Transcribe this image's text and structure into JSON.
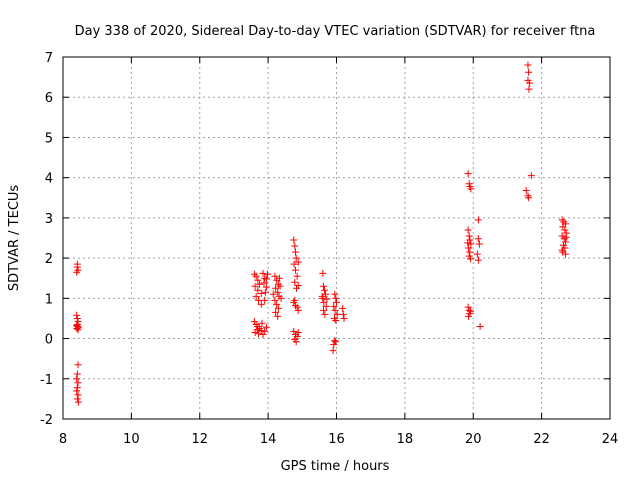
{
  "chart_data": {
    "type": "scatter",
    "title": "Day 338 of 2020, Sidereal Day-to-day VTEC variation (SDTVAR) for receiver ftna",
    "xlabel": "GPS time / hours",
    "ylabel": "SDTVAR / TECUs",
    "xlim": [
      8,
      24
    ],
    "ylim": [
      -2,
      7
    ],
    "xticks": [
      8,
      10,
      12,
      14,
      16,
      18,
      20,
      22,
      24
    ],
    "yticks": [
      -2,
      -1,
      0,
      1,
      2,
      3,
      4,
      5,
      6,
      7
    ],
    "grid": true,
    "marker": "+",
    "color": "#ff0000",
    "series": [
      {
        "name": "SDTVAR",
        "points": [
          [
            8.42,
            1.85
          ],
          [
            8.42,
            1.78
          ],
          [
            8.44,
            1.7
          ],
          [
            8.4,
            1.65
          ],
          [
            8.4,
            0.58
          ],
          [
            8.42,
            0.5
          ],
          [
            8.44,
            0.42
          ],
          [
            8.4,
            0.32
          ],
          [
            8.43,
            0.3
          ],
          [
            8.45,
            0.28
          ],
          [
            8.41,
            0.25
          ],
          [
            8.44,
            0.22
          ],
          [
            8.42,
            0.35
          ],
          [
            8.44,
            -0.65
          ],
          [
            8.42,
            -0.88
          ],
          [
            8.4,
            -1.0
          ],
          [
            8.44,
            -1.1
          ],
          [
            8.42,
            -1.22
          ],
          [
            8.4,
            -1.3
          ],
          [
            8.44,
            -1.4
          ],
          [
            8.42,
            -1.5
          ],
          [
            8.45,
            -1.58
          ],
          [
            13.6,
            1.6
          ],
          [
            13.65,
            1.55
          ],
          [
            13.7,
            1.45
          ],
          [
            13.75,
            1.35
          ],
          [
            13.62,
            1.3
          ],
          [
            13.7,
            1.2
          ],
          [
            13.8,
            1.12
          ],
          [
            13.65,
            1.05
          ],
          [
            13.72,
            0.95
          ],
          [
            13.8,
            0.85
          ],
          [
            13.85,
            1.62
          ],
          [
            13.9,
            1.5
          ],
          [
            13.88,
            1.38
          ],
          [
            13.95,
            1.28
          ],
          [
            13.92,
            1.15
          ],
          [
            13.98,
            1.6
          ],
          [
            13.95,
            1.48
          ],
          [
            13.9,
            0.95
          ],
          [
            13.6,
            0.42
          ],
          [
            13.65,
            0.35
          ],
          [
            13.7,
            0.3
          ],
          [
            13.75,
            0.25
          ],
          [
            13.8,
            0.2
          ],
          [
            13.62,
            0.15
          ],
          [
            13.72,
            0.12
          ],
          [
            13.85,
            0.1
          ],
          [
            13.9,
            0.18
          ],
          [
            13.95,
            0.28
          ],
          [
            13.82,
            0.38
          ],
          [
            13.68,
            0.22
          ],
          [
            14.2,
            1.55
          ],
          [
            14.25,
            1.45
          ],
          [
            14.3,
            1.35
          ],
          [
            14.22,
            1.25
          ],
          [
            14.28,
            1.15
          ],
          [
            14.32,
            1.05
          ],
          [
            14.2,
            0.95
          ],
          [
            14.25,
            0.85
          ],
          [
            14.3,
            0.75
          ],
          [
            14.22,
            0.65
          ],
          [
            14.35,
            1.3
          ],
          [
            14.38,
            1.0
          ],
          [
            14.15,
            1.1
          ],
          [
            14.28,
            0.55
          ],
          [
            14.33,
            1.5
          ],
          [
            14.75,
            2.45
          ],
          [
            14.78,
            2.3
          ],
          [
            14.8,
            2.15
          ],
          [
            14.82,
            2.0
          ],
          [
            14.76,
            1.85
          ],
          [
            14.8,
            1.7
          ],
          [
            14.85,
            1.55
          ],
          [
            14.78,
            1.4
          ],
          [
            14.83,
            1.25
          ],
          [
            14.88,
            1.9
          ],
          [
            14.88,
            1.32
          ],
          [
            14.75,
            0.9
          ],
          [
            14.8,
            0.82
          ],
          [
            14.85,
            0.78
          ],
          [
            14.88,
            0.7
          ],
          [
            14.78,
            0.95
          ],
          [
            14.75,
            0.18
          ],
          [
            14.8,
            0.1
          ],
          [
            14.85,
            0.05
          ],
          [
            14.78,
            -0.02
          ],
          [
            14.82,
            -0.08
          ],
          [
            14.88,
            0.15
          ],
          [
            15.6,
            1.62
          ],
          [
            15.62,
            1.3
          ],
          [
            15.65,
            1.2
          ],
          [
            15.68,
            1.1
          ],
          [
            15.6,
            1.0
          ],
          [
            15.63,
            0.9
          ],
          [
            15.7,
            0.8
          ],
          [
            15.62,
            0.7
          ],
          [
            15.66,
            0.6
          ],
          [
            15.72,
            0.98
          ],
          [
            15.58,
            1.05
          ],
          [
            15.95,
            1.1
          ],
          [
            15.98,
            1.0
          ],
          [
            16.0,
            0.9
          ],
          [
            15.92,
            0.8
          ],
          [
            15.96,
            0.7
          ],
          [
            16.02,
            0.6
          ],
          [
            15.94,
            0.5
          ],
          [
            15.98,
            0.45
          ],
          [
            15.95,
            -0.05
          ],
          [
            15.92,
            -0.15
          ],
          [
            15.9,
            -0.3
          ],
          [
            15.97,
            -0.08
          ],
          [
            16.18,
            0.75
          ],
          [
            16.2,
            0.6
          ],
          [
            16.22,
            0.5
          ],
          [
            19.85,
            4.1
          ],
          [
            19.88,
            3.85
          ],
          [
            19.9,
            3.78
          ],
          [
            19.93,
            3.72
          ],
          [
            19.85,
            2.7
          ],
          [
            19.88,
            2.55
          ],
          [
            19.9,
            2.45
          ],
          [
            19.93,
            2.35
          ],
          [
            19.86,
            2.25
          ],
          [
            19.9,
            2.15
          ],
          [
            19.88,
            2.05
          ],
          [
            19.92,
            1.98
          ],
          [
            19.84,
            2.38
          ],
          [
            19.85,
            0.78
          ],
          [
            19.88,
            0.7
          ],
          [
            19.9,
            0.62
          ],
          [
            19.86,
            0.55
          ],
          [
            19.92,
            0.68
          ],
          [
            20.15,
            2.95
          ],
          [
            20.15,
            2.48
          ],
          [
            20.18,
            2.35
          ],
          [
            20.12,
            2.1
          ],
          [
            20.15,
            1.95
          ],
          [
            20.2,
            0.3
          ],
          [
            21.6,
            6.8
          ],
          [
            21.62,
            6.62
          ],
          [
            21.6,
            6.42
          ],
          [
            21.65,
            6.35
          ],
          [
            21.63,
            6.2
          ],
          [
            21.7,
            4.05
          ],
          [
            21.55,
            3.68
          ],
          [
            21.6,
            3.55
          ],
          [
            21.62,
            3.5
          ],
          [
            22.6,
            2.95
          ],
          [
            22.65,
            2.9
          ],
          [
            22.7,
            2.85
          ],
          [
            22.62,
            2.78
          ],
          [
            22.68,
            2.7
          ],
          [
            22.72,
            2.62
          ],
          [
            22.6,
            2.55
          ],
          [
            22.66,
            2.48
          ],
          [
            22.7,
            2.4
          ],
          [
            22.64,
            2.32
          ],
          [
            22.68,
            2.25
          ],
          [
            22.62,
            2.15
          ],
          [
            22.7,
            2.1
          ],
          [
            22.6,
            2.2
          ],
          [
            22.72,
            2.52
          ]
        ]
      }
    ]
  }
}
